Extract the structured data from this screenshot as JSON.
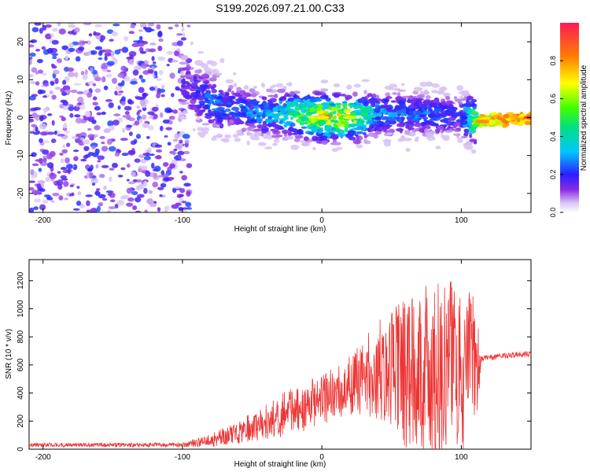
{
  "figure_title": "S199.2026.097.21.00.C33",
  "colors": {
    "snr_line": "#ee3333",
    "axis": "#000000",
    "background": "#ffffff"
  },
  "chart_data": [
    {
      "type": "heatmap",
      "title": "S199.2026.097.21.00.C33",
      "xlabel": "Height of straight line (km)",
      "ylabel": "Frequency (Hz)",
      "xlim": [
        -210,
        150
      ],
      "ylim": [
        -25,
        25
      ],
      "xticks": [
        -200,
        -100,
        0,
        100
      ],
      "yticks": [
        -20,
        -10,
        0,
        10,
        20
      ],
      "colorbar": {
        "label": "Normalized spectral amplitude",
        "range": [
          0,
          1
        ],
        "ticks": [
          "0.0",
          "0.2",
          "0.4",
          "0.6",
          "0.8"
        ],
        "tick_values": [
          0.0,
          0.2,
          0.4,
          0.6,
          0.8
        ]
      },
      "ridge": {
        "x": [
          -100,
          -80,
          -60,
          -40,
          -20,
          0,
          20,
          40,
          60,
          80,
          100,
          115,
          150
        ],
        "frequency": [
          9,
          4,
          2,
          1,
          1,
          0,
          0,
          1,
          1,
          1,
          0,
          -1,
          0
        ],
        "amplitude": [
          0.15,
          0.25,
          0.25,
          0.3,
          0.45,
          0.7,
          0.65,
          0.3,
          0.25,
          0.25,
          0.2,
          0.8,
          0.95
        ]
      },
      "noise_region": {
        "x_range": [
          -210,
          -95
        ],
        "frequency_range": [
          -25,
          25
        ],
        "amplitude": [
          0.0,
          0.2
        ]
      }
    },
    {
      "type": "line",
      "xlabel": "Height of straight line (km)",
      "ylabel": "SNR (10 * v/v)",
      "xlim": [
        -210,
        150
      ],
      "ylim": [
        0,
        1350
      ],
      "xticks": [
        -200,
        -100,
        0,
        100
      ],
      "yticks": [
        0,
        200,
        400,
        600,
        800,
        1000,
        1200
      ],
      "envelope": {
        "x": [
          -210,
          -100,
          -80,
          -60,
          -40,
          -20,
          0,
          20,
          40,
          60,
          80,
          100,
          110,
          115,
          150
        ],
        "mean": [
          30,
          30,
          60,
          120,
          200,
          270,
          360,
          440,
          560,
          560,
          570,
          580,
          600,
          650,
          680
        ],
        "spread": [
          15,
          15,
          50,
          80,
          130,
          180,
          180,
          220,
          350,
          550,
          650,
          600,
          500,
          20,
          20
        ]
      }
    }
  ]
}
